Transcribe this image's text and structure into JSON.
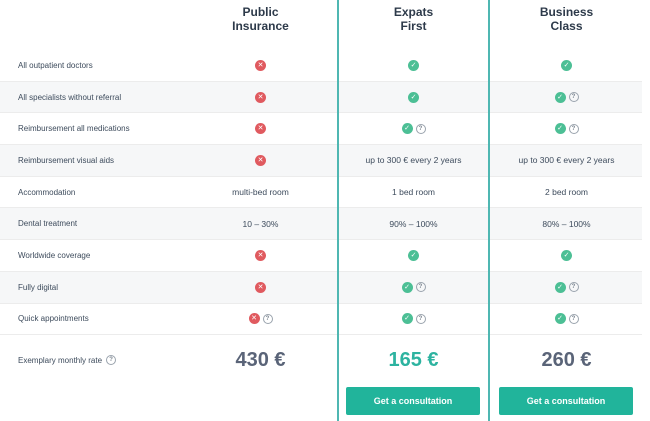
{
  "plans": [
    {
      "name_line1": "Public",
      "name_line2": "Insurance",
      "price": "430 €",
      "cta": ""
    },
    {
      "name_line1": "Expats",
      "name_line2": "First",
      "price": "165 €",
      "cta": "Get a consultation"
    },
    {
      "name_line1": "Business",
      "name_line2": "Class",
      "price": "260 €",
      "cta": "Get a consultation"
    }
  ],
  "rows": [
    {
      "label": "All outpatient doctors",
      "cells": [
        {
          "icon": "x-icon"
        },
        {
          "icon": "check-icon"
        },
        {
          "icon": "check-icon"
        }
      ]
    },
    {
      "label": "All specialists without referral",
      "cells": [
        {
          "icon": "x-icon"
        },
        {
          "icon": "check-icon"
        },
        {
          "icon": "check-icon",
          "info": "?"
        }
      ]
    },
    {
      "label": "Reimbursement all medications",
      "cells": [
        {
          "icon": "x-icon"
        },
        {
          "icon": "check-icon",
          "info": "?"
        },
        {
          "icon": "check-icon",
          "info": "?"
        }
      ]
    },
    {
      "label": "Reimbursement visual aids",
      "cells": [
        {
          "icon": "x-icon"
        },
        {
          "text": "up to 300 € every 2 years"
        },
        {
          "text": "up to 300 € every 2 years"
        }
      ]
    },
    {
      "label": "Accommodation",
      "cells": [
        {
          "text": "multi-bed room"
        },
        {
          "text": "1 bed room"
        },
        {
          "text": "2 bed room"
        }
      ]
    },
    {
      "label": "Dental treatment",
      "cells": [
        {
          "text": "10 – 30%"
        },
        {
          "text": "90% – 100%"
        },
        {
          "text": "80% – 100%"
        }
      ]
    },
    {
      "label": "Worldwide coverage",
      "cells": [
        {
          "icon": "x-icon"
        },
        {
          "icon": "check-icon"
        },
        {
          "icon": "check-icon"
        }
      ]
    },
    {
      "label": "Fully digital",
      "cells": [
        {
          "icon": "x-icon"
        },
        {
          "icon": "check-icon",
          "info": "?"
        },
        {
          "icon": "check-icon",
          "info": "?"
        }
      ]
    },
    {
      "label": "Quick appointments",
      "cells": [
        {
          "icon": "x-icon",
          "info": "?"
        },
        {
          "icon": "check-icon",
          "info": "?"
        },
        {
          "icon": "check-icon",
          "info": "?"
        }
      ]
    }
  ],
  "rate_label": "Exemplary monthly rate",
  "rate_info": "?",
  "symbols": {
    "check": "✓",
    "x": "✕"
  },
  "colors": {
    "accent": "#21b49b",
    "frame": "#4fb7b2",
    "check": "#4cbf95",
    "cross": "#e05a5f",
    "price_highlight": "#2db3a0"
  }
}
